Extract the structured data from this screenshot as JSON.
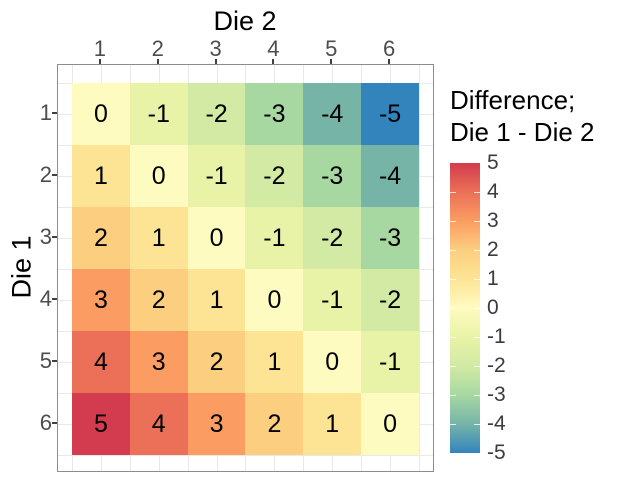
{
  "chart_data": {
    "type": "heatmap",
    "x_axis": {
      "title": "Die 2",
      "position": "top",
      "categories": [
        "1",
        "2",
        "3",
        "4",
        "5",
        "6"
      ]
    },
    "y_axis": {
      "title": "Die 1",
      "position": "left",
      "categories": [
        "1",
        "2",
        "3",
        "4",
        "5",
        "6"
      ]
    },
    "cell_values": [
      [
        0,
        -1,
        -2,
        -3,
        -4,
        -5
      ],
      [
        1,
        0,
        -1,
        -2,
        -3,
        -4
      ],
      [
        2,
        1,
        0,
        -1,
        -2,
        -3
      ],
      [
        3,
        2,
        1,
        0,
        -1,
        -2
      ],
      [
        4,
        3,
        2,
        1,
        0,
        -1
      ],
      [
        5,
        4,
        3,
        2,
        1,
        0
      ]
    ],
    "value_colors": {
      "5": "#d23c4e",
      "4": "#eb7057",
      "3": "#fb9d62",
      "2": "#fcce80",
      "1": "#fde495",
      "0": "#fefbc0",
      "-1": "#e9f3a7",
      "-2": "#d2eaa3",
      "-3": "#a7d8a1",
      "-4": "#76b4a8",
      "-5": "#3384bd"
    },
    "legend": {
      "title_lines": [
        "Difference;",
        "Die 1 - Die 2"
      ],
      "tick_labels": [
        "5",
        "4",
        "3",
        "2",
        "1",
        "0",
        "-1",
        "-2",
        "-3",
        "-4",
        "-5"
      ],
      "range": [
        -5,
        5
      ]
    },
    "colors": {
      "background": "#ffffff",
      "cell_text": "#000000",
      "axis_text": "#4d4d4d",
      "axis_title": "#000000",
      "legend_text": "#3c3c3c",
      "tick": "#404040",
      "grid": "#e9e9e9",
      "panel_border": "#8c8c8c"
    }
  }
}
